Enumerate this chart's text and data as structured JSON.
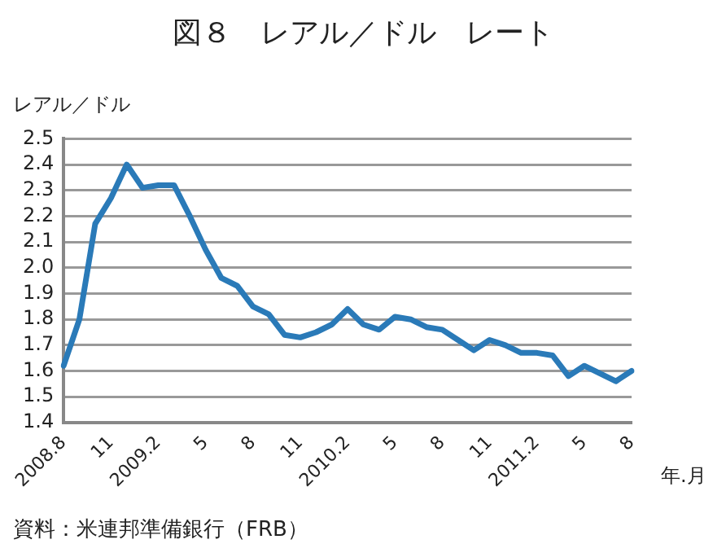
{
  "chart_data": {
    "type": "line",
    "title": "図８　レアル／ドル　レート",
    "ylabel": "レアル／ドル",
    "xlabel": "年.月",
    "annotations": [
      "資料：米連邦準備銀行（FRB）"
    ],
    "categories": [
      "2008.8",
      null,
      null,
      "11",
      null,
      null,
      "2009.2",
      null,
      null,
      "5",
      null,
      null,
      "8",
      null,
      null,
      "11",
      null,
      null,
      "2010.2",
      null,
      null,
      "5",
      null,
      null,
      "8",
      null,
      null,
      "11",
      null,
      null,
      "2011.2",
      null,
      null,
      "5",
      null,
      null,
      "8"
    ],
    "series": [
      {
        "color": "#2a7ab8",
        "values": [
          1.62,
          1.8,
          2.17,
          2.27,
          2.4,
          2.31,
          2.32,
          2.32,
          2.2,
          2.07,
          1.96,
          1.93,
          1.85,
          1.82,
          1.74,
          1.73,
          1.75,
          1.78,
          1.84,
          1.78,
          1.76,
          1.81,
          1.8,
          1.77,
          1.76,
          1.72,
          1.68,
          1.72,
          1.7,
          1.67,
          1.67,
          1.66,
          1.58,
          1.62,
          1.59,
          1.56,
          1.6
        ]
      }
    ],
    "ylim": [
      1.4,
      2.5
    ],
    "yticks": [
      1.4,
      1.5,
      1.6,
      1.7,
      1.8,
      1.9,
      {
        "value": 2.0,
        "label": "2.0"
      },
      2.1,
      2.2,
      2.3,
      2.4,
      2.5
    ],
    "grid": "y",
    "legend": false,
    "marker": "none",
    "line_style": "solid"
  }
}
